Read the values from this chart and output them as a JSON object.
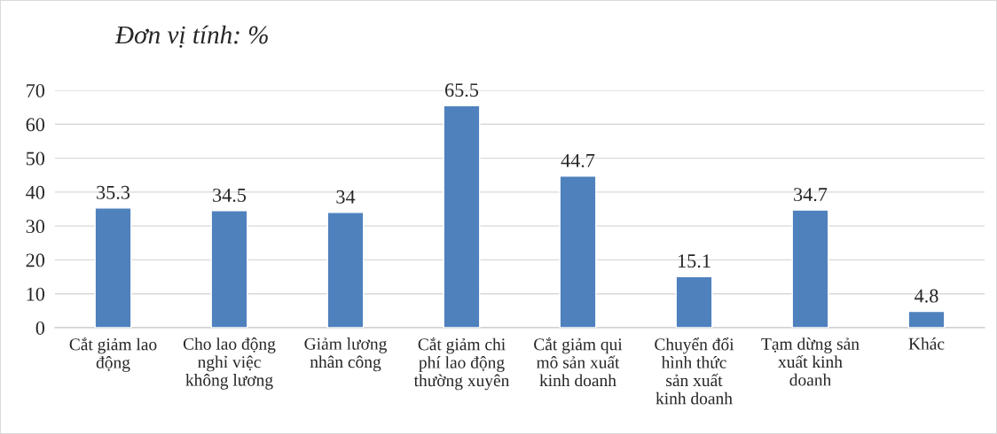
{
  "chart_data": {
    "type": "bar",
    "title": "Đơn vị tính: %",
    "categories": [
      "Cắt giảm lao động",
      "Cho lao động nghỉ việc không lương",
      "Giảm lương nhân công",
      "Cắt giảm chi phí lao động thường xuyên",
      "Cắt giảm qui mô sản xuất kinh doanh",
      "Chuyển đổi hình thức sản xuất kinh doanh",
      "Tạm dừng sản xuất kinh doanh",
      "Khác"
    ],
    "values": [
      35.3,
      34.5,
      34,
      65.5,
      44.7,
      15.1,
      34.7,
      4.8
    ],
    "color": "#4f81bd",
    "ylim": [
      0,
      70
    ],
    "yticks": [
      0,
      10,
      20,
      30,
      40,
      50,
      60,
      70
    ],
    "grid": "y",
    "data_labels": true
  }
}
